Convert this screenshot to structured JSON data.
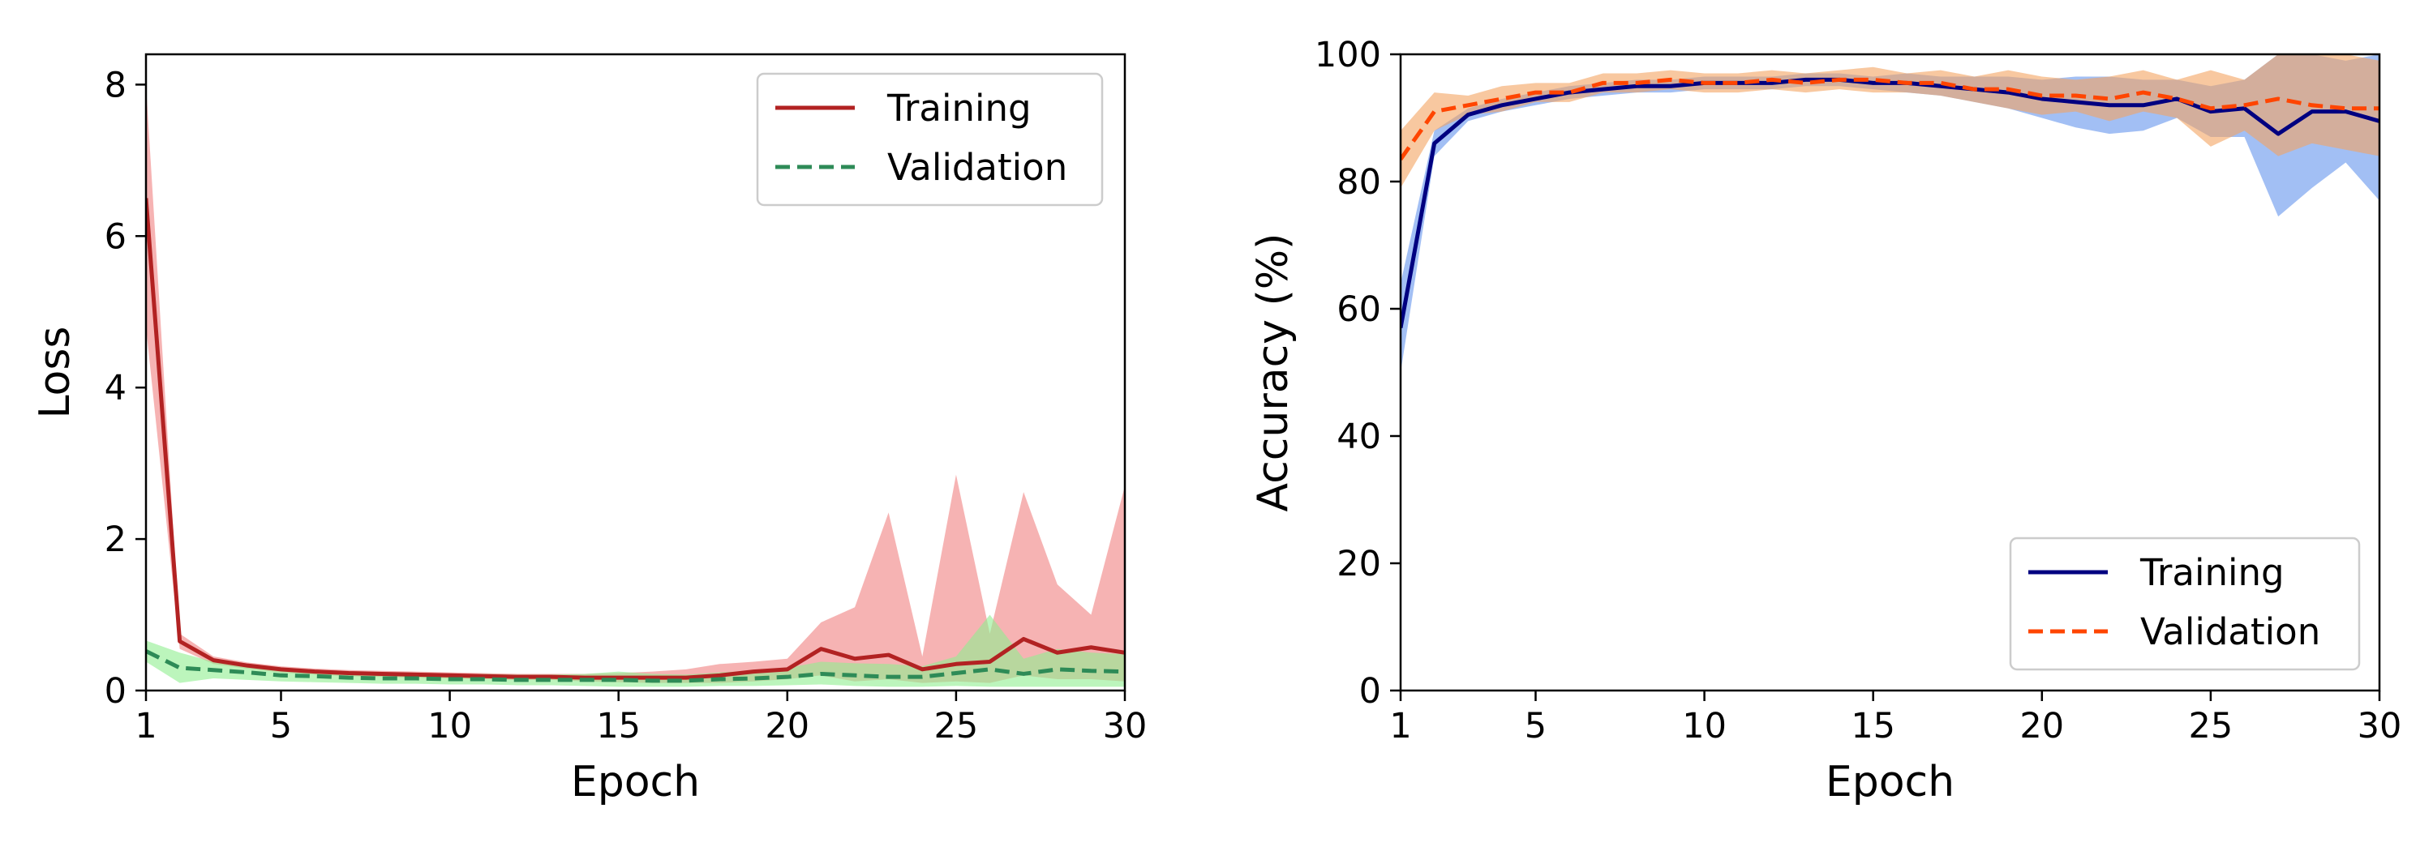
{
  "chart_data": [
    {
      "type": "line",
      "xlabel": "Epoch",
      "ylabel": "Loss",
      "xlim": [
        1,
        30
      ],
      "ylim": [
        0,
        8.4
      ],
      "xticks": [
        1,
        5,
        10,
        15,
        20,
        25,
        30
      ],
      "yticks": [
        0,
        2,
        4,
        6,
        8
      ],
      "grid": false,
      "legend": "upper right",
      "x": [
        1,
        2,
        3,
        4,
        5,
        6,
        7,
        8,
        9,
        10,
        11,
        12,
        13,
        14,
        15,
        16,
        17,
        18,
        19,
        20,
        21,
        22,
        23,
        24,
        25,
        26,
        27,
        28,
        29,
        30
      ],
      "series": [
        {
          "name": "Training",
          "color": "#b22222",
          "band_color": "#f08080",
          "style": "solid",
          "values": [
            6.5,
            0.65,
            0.4,
            0.33,
            0.28,
            0.25,
            0.23,
            0.22,
            0.21,
            0.2,
            0.19,
            0.18,
            0.18,
            0.17,
            0.17,
            0.17,
            0.17,
            0.2,
            0.25,
            0.28,
            0.55,
            0.42,
            0.47,
            0.28,
            0.35,
            0.38,
            0.68,
            0.5,
            0.57,
            0.5
          ],
          "lower": [
            4.8,
            0.55,
            0.35,
            0.29,
            0.24,
            0.21,
            0.19,
            0.18,
            0.17,
            0.16,
            0.15,
            0.14,
            0.14,
            0.12,
            0.11,
            0.1,
            0.1,
            0.1,
            0.12,
            0.15,
            0.2,
            0.12,
            0.15,
            0.1,
            0.12,
            0.1,
            0.2,
            0.15,
            0.15,
            0.12
          ],
          "upper": [
            8.0,
            0.75,
            0.45,
            0.37,
            0.32,
            0.29,
            0.27,
            0.26,
            0.25,
            0.24,
            0.23,
            0.22,
            0.22,
            0.22,
            0.23,
            0.25,
            0.28,
            0.35,
            0.38,
            0.42,
            0.9,
            1.1,
            2.35,
            0.45,
            2.85,
            0.75,
            2.62,
            1.4,
            1.0,
            2.7
          ]
        },
        {
          "name": "Validation",
          "color": "#2e8b57",
          "band_color": "#90ee90",
          "style": "dashed",
          "values": [
            0.52,
            0.3,
            0.27,
            0.24,
            0.2,
            0.19,
            0.17,
            0.16,
            0.16,
            0.15,
            0.15,
            0.14,
            0.14,
            0.14,
            0.14,
            0.13,
            0.13,
            0.15,
            0.16,
            0.18,
            0.22,
            0.2,
            0.18,
            0.18,
            0.23,
            0.28,
            0.22,
            0.28,
            0.26,
            0.25
          ],
          "lower": [
            0.38,
            0.1,
            0.16,
            0.14,
            0.12,
            0.11,
            0.1,
            0.09,
            0.09,
            0.08,
            0.08,
            0.07,
            0.07,
            0.06,
            0.05,
            0.05,
            0.05,
            0.06,
            0.06,
            0.07,
            0.08,
            0.06,
            0.05,
            0.05,
            0.06,
            0.05,
            0.05,
            0.05,
            0.05,
            0.05
          ],
          "upper": [
            0.66,
            0.5,
            0.38,
            0.34,
            0.28,
            0.27,
            0.24,
            0.23,
            0.23,
            0.22,
            0.22,
            0.21,
            0.21,
            0.22,
            0.25,
            0.22,
            0.21,
            0.24,
            0.26,
            0.3,
            0.38,
            0.36,
            0.35,
            0.32,
            0.45,
            1.0,
            0.42,
            0.55,
            0.5,
            0.48
          ]
        }
      ]
    },
    {
      "type": "line",
      "xlabel": "Epoch",
      "ylabel": "Accuracy (%)",
      "xlim": [
        1,
        30
      ],
      "ylim": [
        0,
        100
      ],
      "xticks": [
        1,
        5,
        10,
        15,
        20,
        25,
        30
      ],
      "yticks": [
        0,
        20,
        40,
        60,
        80,
        100
      ],
      "grid": false,
      "legend": "lower right",
      "x": [
        1,
        2,
        3,
        4,
        5,
        6,
        7,
        8,
        9,
        10,
        11,
        12,
        13,
        14,
        15,
        16,
        17,
        18,
        19,
        20,
        21,
        22,
        23,
        24,
        25,
        26,
        27,
        28,
        29,
        30
      ],
      "series": [
        {
          "name": "Training",
          "color": "#000080",
          "band_color": "#6495ed",
          "style": "solid",
          "values": [
            57,
            86,
            90.5,
            92,
            93,
            94,
            94.5,
            95,
            95,
            95.5,
            95.5,
            95.5,
            96,
            96,
            95.5,
            95.5,
            95,
            94.5,
            94,
            93,
            92.5,
            92,
            92,
            93,
            91,
            91.5,
            87.5,
            91,
            91,
            89.5
          ],
          "lower": [
            50,
            84,
            89.5,
            91,
            92,
            93,
            93.5,
            94,
            94,
            94.5,
            94.5,
            94.5,
            95,
            95,
            94.5,
            94,
            93.5,
            92.5,
            91.5,
            90,
            88.5,
            87.5,
            88,
            90,
            87,
            87,
            74.5,
            79,
            83,
            77
          ],
          "upper": [
            64,
            88,
            91.5,
            93,
            94,
            95,
            95.5,
            96,
            96,
            96.5,
            96.5,
            96.5,
            97,
            97,
            96.5,
            97,
            96.5,
            96.5,
            96.5,
            96,
            96.5,
            96.5,
            96,
            96,
            95,
            96,
            100,
            100,
            99,
            100
          ]
        },
        {
          "name": "Validation",
          "color": "#ff4500",
          "band_color": "#f4a460",
          "style": "dashed",
          "values": [
            83.5,
            91,
            92,
            93,
            94,
            94,
            95.5,
            95.5,
            96,
            95.5,
            95.5,
            96,
            95.5,
            96,
            96,
            95.5,
            95.5,
            94.5,
            94.5,
            93.5,
            93.5,
            93,
            94,
            93,
            91.5,
            92,
            93,
            92,
            91.5,
            91.5
          ],
          "lower": [
            79,
            88,
            90.5,
            91,
            92.5,
            92.5,
            94,
            94,
            94.5,
            94,
            94,
            94.5,
            94,
            94.5,
            94,
            94,
            93.5,
            92.5,
            91.5,
            90.5,
            91,
            89.5,
            91,
            90,
            85.5,
            88,
            84,
            86,
            85,
            84
          ],
          "upper": [
            88,
            94,
            93.5,
            95,
            95.5,
            95.5,
            97,
            97,
            97.5,
            97,
            97,
            97.5,
            97,
            97.5,
            98,
            97,
            97.5,
            96.5,
            97.5,
            96.5,
            96,
            96.5,
            97.5,
            96,
            97.5,
            96,
            100,
            100,
            100,
            99
          ]
        }
      ]
    }
  ]
}
